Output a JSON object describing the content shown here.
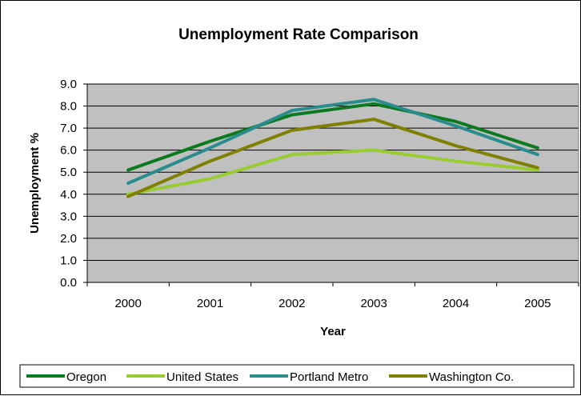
{
  "chart_data": {
    "type": "line",
    "title": "Unemployment Rate Comparison",
    "xlabel": "Year",
    "ylabel": "Unemployment %",
    "categories": [
      "2000",
      "2001",
      "2002",
      "2003",
      "2004",
      "2005"
    ],
    "ylim": [
      0,
      9
    ],
    "yticks": [
      "0.0",
      "1.0",
      "2.0",
      "3.0",
      "4.0",
      "5.0",
      "6.0",
      "7.0",
      "8.0",
      "9.0"
    ],
    "grid": true,
    "plot_background": "#c0c0c0",
    "legend_position": "bottom",
    "series": [
      {
        "name": "Oregon",
        "color": "#0a7a1e",
        "values": [
          5.1,
          6.4,
          7.6,
          8.1,
          7.3,
          6.1
        ]
      },
      {
        "name": "United States",
        "color": "#99cc33",
        "values": [
          4.0,
          4.7,
          5.8,
          6.0,
          5.5,
          5.1
        ]
      },
      {
        "name": "Portland Metro",
        "color": "#2a8c8c",
        "values": [
          4.5,
          6.1,
          7.8,
          8.3,
          7.1,
          5.8
        ]
      },
      {
        "name": "Washington Co.",
        "color": "#808000",
        "values": [
          3.9,
          5.5,
          6.9,
          7.4,
          6.2,
          5.2
        ]
      }
    ]
  }
}
